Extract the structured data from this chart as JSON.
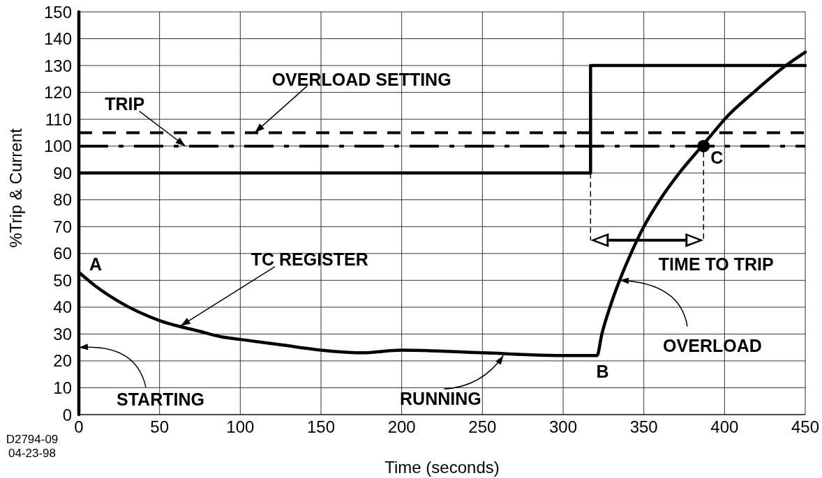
{
  "chart_data": {
    "type": "line",
    "xlabel": "Time (seconds)",
    "ylabel": "%Trip & Current",
    "xlim": [
      0,
      450
    ],
    "ylim": [
      0,
      150
    ],
    "xticks": [
      0,
      50,
      100,
      150,
      200,
      250,
      300,
      350,
      400,
      450
    ],
    "yticks": [
      0,
      10,
      20,
      30,
      40,
      50,
      60,
      70,
      80,
      90,
      100,
      110,
      120,
      130,
      140,
      150
    ],
    "grid": true,
    "series": [
      {
        "color": "#000000",
        "x": [
          0,
          0,
          0,
          317,
          317,
          450
        ],
        "values": [
          0,
          150,
          90,
          90,
          130,
          130
        ]
      },
      {
        "color": "#000000",
        "x": [
          0,
          10,
          25,
          50,
          75,
          88,
          100,
          125,
          150,
          175,
          200,
          250,
          300,
          321,
          324,
          329,
          335,
          342,
          350,
          360,
          372,
          386,
          393,
          400,
          418,
          438,
          450
        ],
        "values": [
          53,
          48,
          42,
          35,
          31,
          29,
          28,
          26,
          24,
          23,
          24,
          23,
          22,
          22,
          30,
          40,
          50,
          60,
          70,
          80,
          90,
          100,
          105,
          110,
          120,
          130,
          135
        ]
      },
      {
        "type": "scatter",
        "color": "#000000",
        "marker": "circle",
        "x": [
          387
        ],
        "values": [
          100
        ]
      }
    ],
    "ref_lines": [
      {
        "axis": "y",
        "value": 105,
        "color": "#000000",
        "line_style": "dashed"
      },
      {
        "axis": "y",
        "value": 100,
        "color": "#000000",
        "line_style": "dashdot"
      }
    ],
    "annotations": [
      {
        "text": "OVERLOAD SETTING",
        "x": 109,
        "y": 105
      },
      {
        "text": "TRIP",
        "x": 66,
        "y": 100
      },
      {
        "text": "A",
        "x": 0,
        "y": 53
      },
      {
        "text": "TC REGISTER",
        "x": 63,
        "y": 33
      },
      {
        "text": "STARTING",
        "x": 0,
        "y": 25
      },
      {
        "text": "RUNNING",
        "x": 263,
        "y": 22
      },
      {
        "text": "B",
        "x": 321,
        "y": 22
      },
      {
        "text": "OVERLOAD",
        "x": 335,
        "y": 50
      },
      {
        "text": "C",
        "x": 387,
        "y": 100
      },
      {
        "text": "TIME TO TRIP",
        "x": 387,
        "y": 100
      },
      "D2794-09",
      "04-23-98"
    ]
  }
}
